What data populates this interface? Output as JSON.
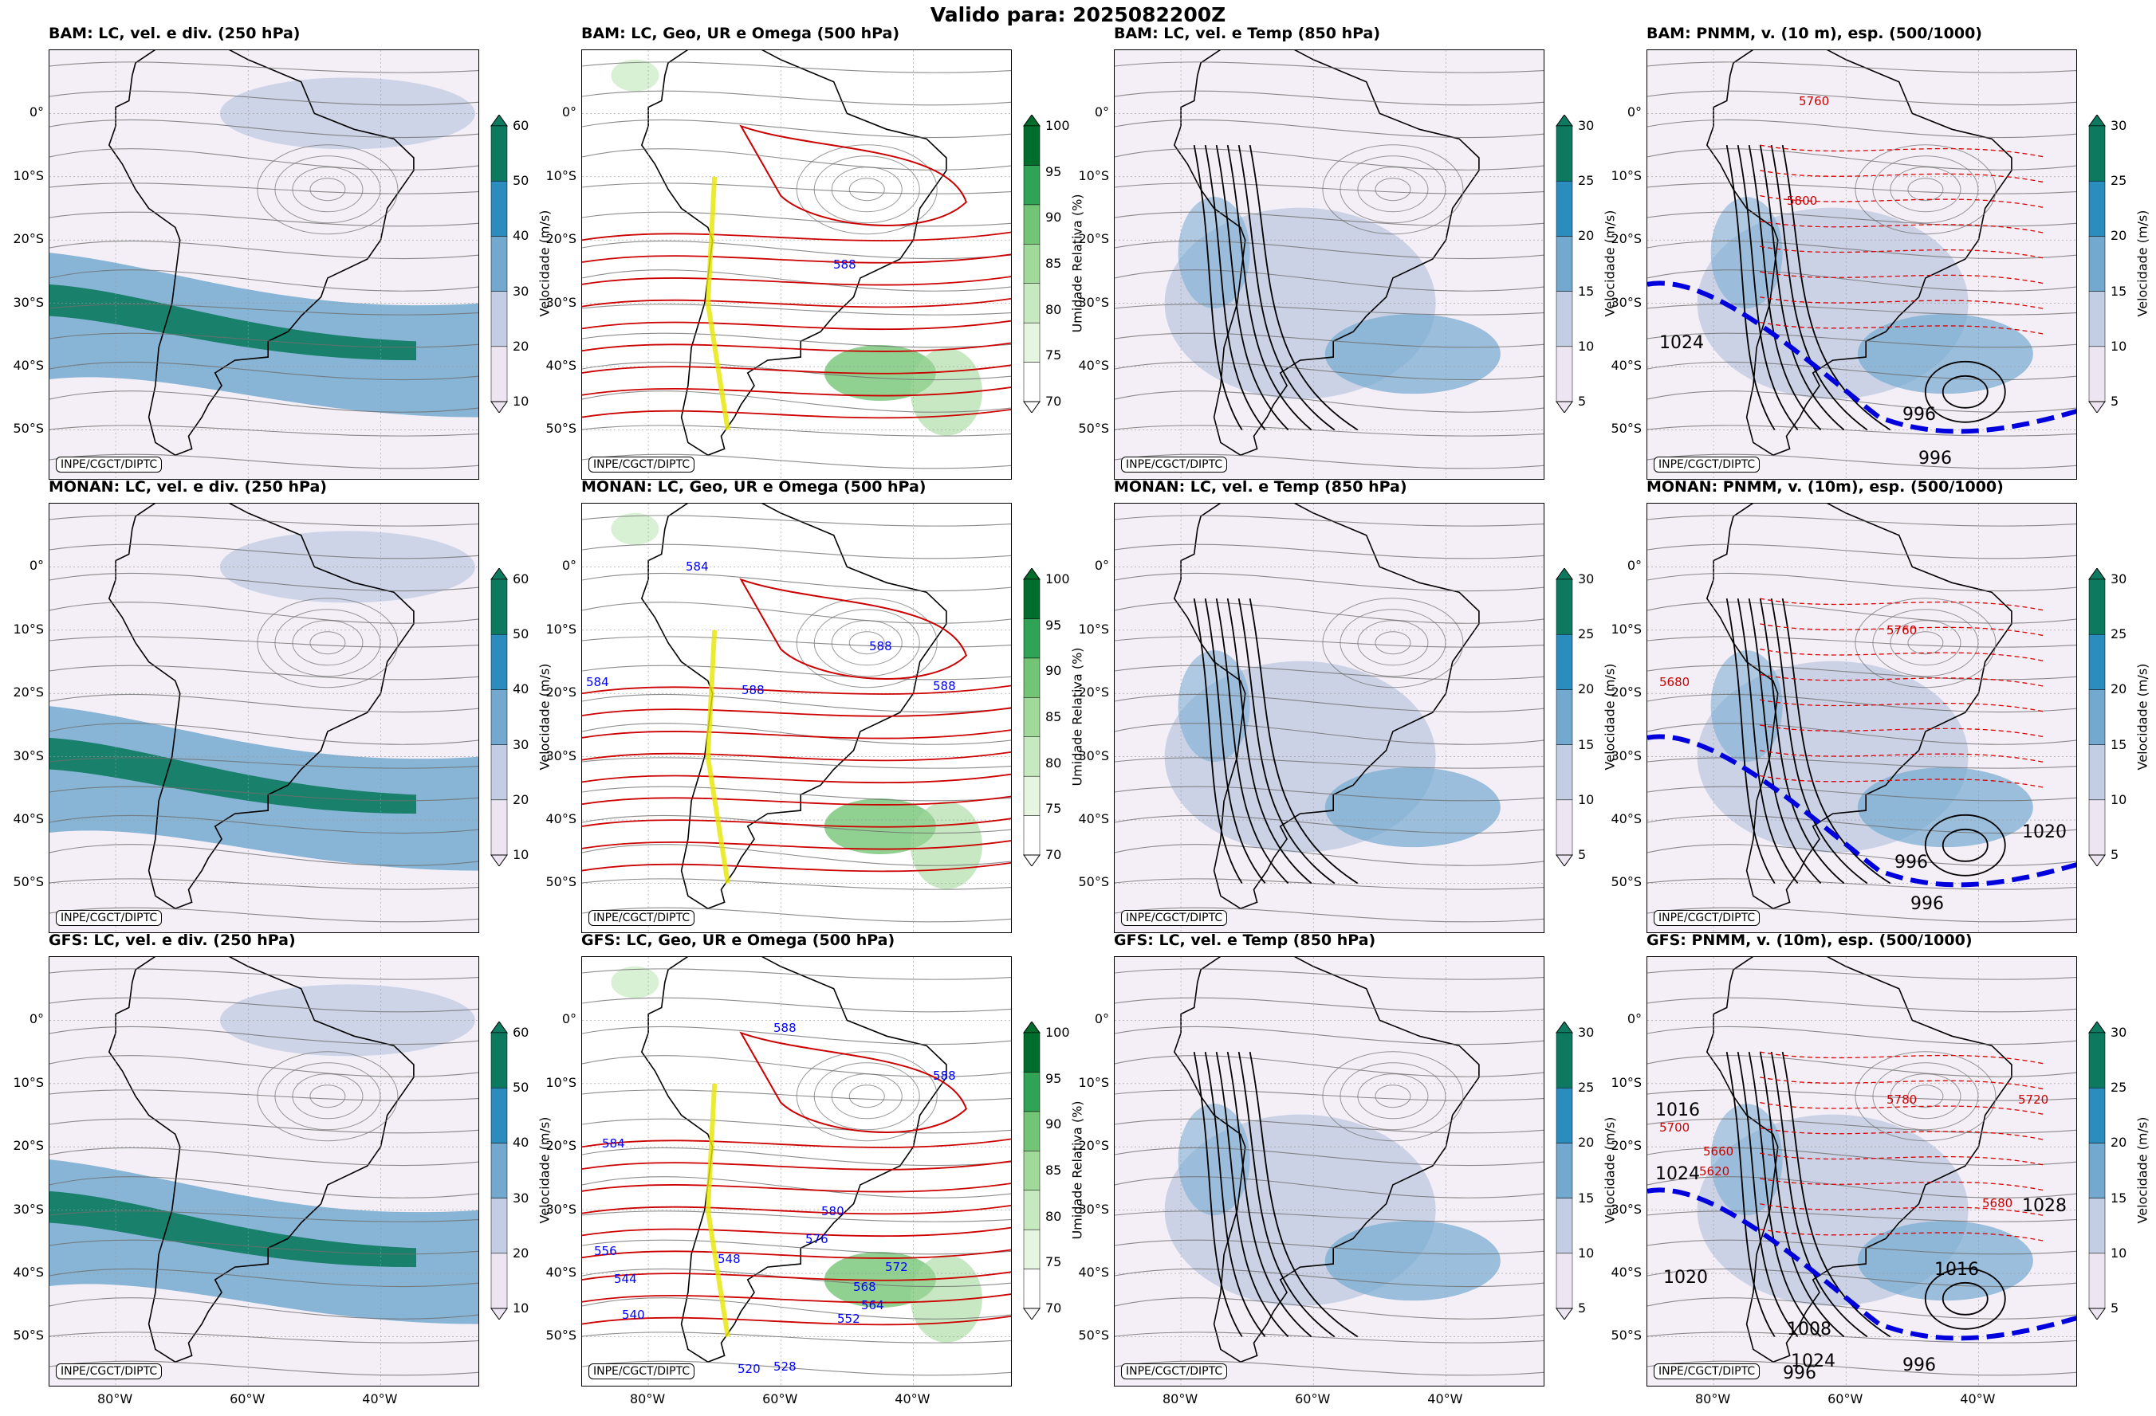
{
  "title": "Valido para: 2025082200Z",
  "credit": "INPE/CGCT/DIPTC",
  "rows": [
    {
      "model": "BAM",
      "titles": [
        "BAM: LC, vel. e div. (250 hPa)",
        "BAM: LC, Geo, UR e Omega (500 hPa)",
        "BAM: LC, vel. e Temp (850 hPa)",
        "BAM: PNMM, v. (10 m), esp. (500/1000)"
      ]
    },
    {
      "model": "MONAN",
      "titles": [
        "MONAN: LC, vel. e div. (250 hPa)",
        "MONAN: LC, Geo, UR e Omega (500 hPa)",
        "MONAN: LC, vel. e Temp (850 hPa)",
        "MONAN: PNMM, v. (10m), esp. (500/1000)"
      ]
    },
    {
      "model": "GFS",
      "titles": [
        "GFS: LC, vel. e div. (250 hPa)",
        "GFS: LC, Geo, UR e Omega (500 hPa)",
        "GFS: LC, vel. e Temp (850 hPa)",
        "GFS: PNMM, v. (10m), esp. (500/1000)"
      ]
    }
  ],
  "lat_ticks": [
    "0°",
    "10°S",
    "20°S",
    "30°S",
    "40°S",
    "50°S"
  ],
  "lon_ticks": [
    "80°W",
    "60°W",
    "40°W"
  ],
  "colorbars": {
    "vel250": {
      "label": "Velocidade (m/s)",
      "ticks": [
        "10",
        "20",
        "30",
        "40",
        "50",
        "60"
      ],
      "colors": [
        "#ede6f2",
        "#c3cde3",
        "#74a9cf",
        "#2b8cbe",
        "#0d7a5f"
      ]
    },
    "ur500": {
      "label": "Umidade Relativa (%)",
      "ticks": [
        "70",
        "75",
        "80",
        "85",
        "90",
        "95",
        "100"
      ],
      "colors": [
        "#ffffff",
        "#e5f5e0",
        "#c7e9c0",
        "#a1d99b",
        "#74c476",
        "#31a354",
        "#006d2c"
      ]
    },
    "vel850": {
      "label": "Velocidade (m/s)",
      "ticks": [
        "5",
        "10",
        "15",
        "20",
        "25",
        "30"
      ],
      "colors": [
        "#ede6f2",
        "#c3cde3",
        "#74a9cf",
        "#2b8cbe",
        "#0d7a5f"
      ]
    },
    "vel10": {
      "label": "Velocidade (m/s)",
      "ticks": [
        "5",
        "10",
        "15",
        "20",
        "25",
        "30"
      ],
      "colors": [
        "#ede6f2",
        "#c3cde3",
        "#74a9cf",
        "#2b8cbe",
        "#0d7a5f"
      ]
    }
  },
  "contour_labels": {
    "geo_bam": [
      "588"
    ],
    "geo_monan": [
      "584",
      "588",
      "584",
      "588",
      "588"
    ],
    "geo_gfs": [
      "588",
      "584",
      "588",
      "580",
      "576",
      "572",
      "568",
      "564",
      "552",
      "548",
      "544",
      "540",
      "556",
      "520",
      "528"
    ],
    "pnmm_bam": [
      "1024",
      "996",
      "996",
      "5760",
      "5800"
    ],
    "pnmm_monan": [
      "5680",
      "996",
      "996",
      "1020",
      "5760"
    ],
    "pnmm_gfs": [
      "1016",
      "1024",
      "1020",
      "996",
      "996",
      "1016",
      "1028",
      "5720",
      "5700",
      "5660",
      "5620",
      "5680",
      "5780",
      "1008",
      "1024"
    ]
  },
  "palette": {
    "land_line": "#000000",
    "streamline": "#6e6e6e",
    "geo_contour": "#cc0000",
    "omega": "#e6e600",
    "thickness": "#dd0000",
    "frontline": "#0000dd"
  }
}
